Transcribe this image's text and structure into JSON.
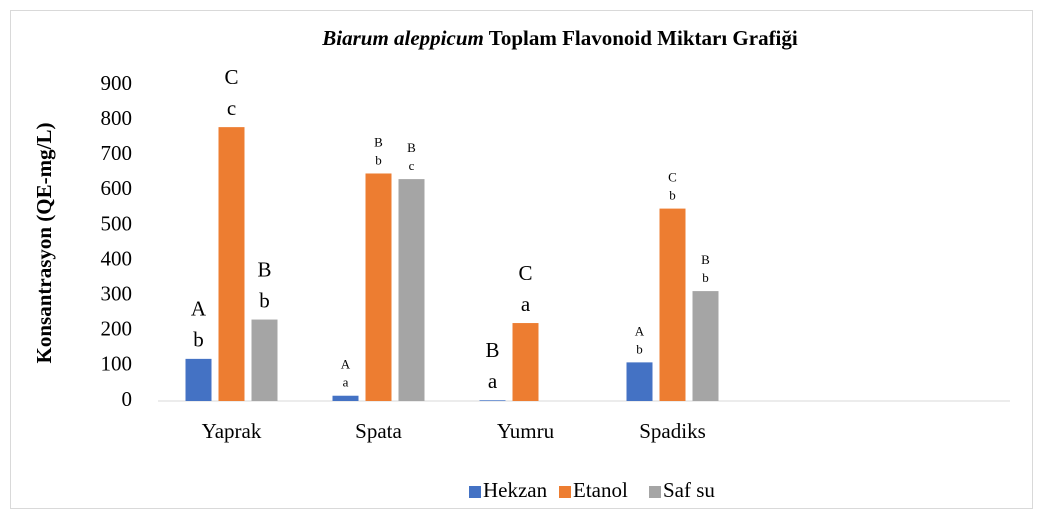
{
  "chart_data": {
    "type": "bar",
    "title_italic": "Biarum aleppicum",
    "title": "Toplam Flavonoid Miktarı Grafiği",
    "y_label": "Konsantrasyon (QE-mg/L)",
    "categories": [
      "Yaprak",
      "Spata",
      "Yumru",
      "Spadiks"
    ],
    "series": [
      {
        "name": "Hekzan",
        "color": "#4472c4",
        "values": [
          120,
          15,
          2,
          110
        ],
        "letters": [
          [
            "A",
            "b"
          ],
          [
            "A",
            "a"
          ],
          [
            "B",
            "a"
          ],
          [
            "A",
            "b"
          ]
        ]
      },
      {
        "name": "Etanol",
        "color": "#ed7d31",
        "values": [
          780,
          648,
          222,
          548
        ],
        "letters": [
          [
            "C",
            "c"
          ],
          [
            "B",
            "b"
          ],
          [
            "C",
            "a"
          ],
          [
            "C",
            "b"
          ]
        ]
      },
      {
        "name": "Saf su",
        "color": "#a5a5a5",
        "values": [
          232,
          632,
          null,
          313
        ],
        "letters": [
          [
            "B",
            "b"
          ],
          [
            "B",
            "c"
          ],
          null,
          [
            "B",
            "b"
          ]
        ]
      }
    ],
    "ylim": [
      0,
      900
    ],
    "yticks": [
      0,
      100,
      200,
      300,
      400,
      500,
      600,
      700,
      800,
      900
    ],
    "grid": false,
    "legend": "bottom"
  }
}
